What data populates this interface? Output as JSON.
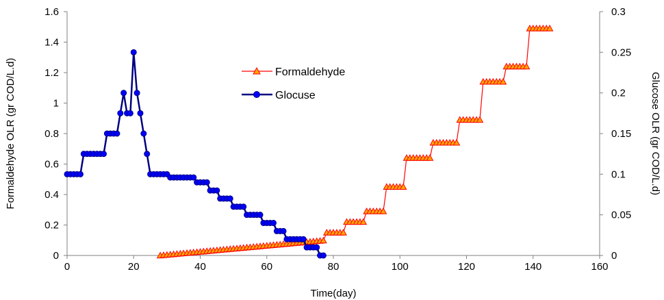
{
  "chart_data": {
    "type": "line",
    "title": "",
    "xlabel": "Time(day)",
    "ylabel_left": "Formaldehyde OLR (gr COD/L.d)",
    "ylabel_right": "Glucose OLR (gr COD/L.d)",
    "xlim": [
      0,
      160
    ],
    "ylim_left": [
      0,
      1.6
    ],
    "ylim_right": [
      0,
      0.3
    ],
    "x_ticks": [
      "0",
      "20",
      "40",
      "60",
      "80",
      "100",
      "120",
      "140",
      "160"
    ],
    "y_left_ticks": [
      "0",
      "0.2",
      "0.4",
      "0.6",
      "0.8",
      "1",
      "1.2",
      "1.4",
      "1.6"
    ],
    "y_right_ticks": [
      "0",
      "0.05",
      "0.1",
      "0.15",
      "0.2",
      "0.25",
      "0.3"
    ],
    "grid": false,
    "legend_position": "center",
    "series": [
      {
        "name": "Formaldehyde",
        "axis": "left",
        "color": "#ff0000",
        "marker_fill": "#ffa500",
        "marker": "triangle",
        "x": [
          28,
          29,
          30,
          31,
          32,
          33,
          34,
          35,
          36,
          37,
          38,
          39,
          40,
          41,
          42,
          43,
          44,
          45,
          46,
          47,
          48,
          49,
          50,
          51,
          52,
          53,
          54,
          55,
          56,
          57,
          58,
          59,
          60,
          61,
          62,
          63,
          64,
          65,
          66,
          67,
          68,
          69,
          70,
          71,
          72,
          73,
          74,
          75,
          76,
          77,
          78,
          79,
          80,
          81,
          82,
          83,
          84,
          85,
          86,
          87,
          88,
          89,
          90,
          91,
          92,
          93,
          94,
          95,
          96,
          97,
          98,
          99,
          100,
          101,
          102,
          103,
          104,
          105,
          106,
          107,
          108,
          109,
          110,
          111,
          112,
          113,
          114,
          115,
          116,
          117,
          118,
          119,
          120,
          121,
          122,
          123,
          124,
          125,
          126,
          127,
          128,
          129,
          130,
          131,
          132,
          133,
          134,
          135,
          136,
          137,
          138,
          139,
          140,
          141,
          142,
          143,
          144,
          145
        ],
        "y": [
          0.0,
          0.002,
          0.004,
          0.006,
          0.008,
          0.01,
          0.012,
          0.014,
          0.016,
          0.018,
          0.02,
          0.022,
          0.024,
          0.026,
          0.028,
          0.03,
          0.032,
          0.034,
          0.036,
          0.038,
          0.04,
          0.042,
          0.044,
          0.046,
          0.048,
          0.05,
          0.052,
          0.054,
          0.056,
          0.058,
          0.06,
          0.062,
          0.064,
          0.066,
          0.068,
          0.07,
          0.072,
          0.074,
          0.076,
          0.078,
          0.08,
          0.082,
          0.084,
          0.086,
          0.088,
          0.09,
          0.092,
          0.094,
          0.096,
          0.098,
          0.15,
          0.15,
          0.15,
          0.15,
          0.15,
          0.15,
          0.22,
          0.22,
          0.22,
          0.22,
          0.22,
          0.22,
          0.29,
          0.29,
          0.29,
          0.29,
          0.29,
          0.29,
          0.45,
          0.45,
          0.45,
          0.45,
          0.45,
          0.45,
          0.64,
          0.64,
          0.64,
          0.64,
          0.64,
          0.64,
          0.64,
          0.64,
          0.74,
          0.74,
          0.74,
          0.74,
          0.74,
          0.74,
          0.74,
          0.74,
          0.89,
          0.89,
          0.89,
          0.89,
          0.89,
          0.89,
          0.89,
          1.14,
          1.14,
          1.14,
          1.14,
          1.14,
          1.14,
          1.14,
          1.24,
          1.24,
          1.24,
          1.24,
          1.24,
          1.24,
          1.24,
          1.49,
          1.49,
          1.49,
          1.49,
          1.49,
          1.49,
          1.49
        ]
      },
      {
        "name": "Glocuse",
        "axis": "right",
        "color": "#000080",
        "marker_fill": "#0000ff",
        "marker": "circle",
        "x": [
          0,
          1,
          2,
          3,
          4,
          5,
          6,
          7,
          8,
          9,
          10,
          11,
          12,
          13,
          14,
          15,
          16,
          17,
          18,
          19,
          20,
          21,
          22,
          23,
          24,
          25,
          26,
          27,
          28,
          29,
          30,
          31,
          32,
          33,
          34,
          35,
          36,
          37,
          38,
          39,
          40,
          41,
          42,
          43,
          44,
          45,
          46,
          47,
          48,
          49,
          50,
          51,
          52,
          53,
          54,
          55,
          56,
          57,
          58,
          59,
          60,
          61,
          62,
          63,
          64,
          65,
          66,
          67,
          68,
          69,
          70,
          71,
          72,
          73,
          74,
          75,
          76,
          77
        ],
        "y": [
          0.1,
          0.1,
          0.1,
          0.1,
          0.1,
          0.125,
          0.125,
          0.125,
          0.125,
          0.125,
          0.125,
          0.125,
          0.15,
          0.15,
          0.15,
          0.15,
          0.175,
          0.2,
          0.175,
          0.175,
          0.25,
          0.2,
          0.175,
          0.15,
          0.125,
          0.1,
          0.1,
          0.1,
          0.1,
          0.1,
          0.1,
          0.096,
          0.096,
          0.096,
          0.096,
          0.096,
          0.096,
          0.096,
          0.096,
          0.09,
          0.09,
          0.09,
          0.09,
          0.08,
          0.08,
          0.08,
          0.07,
          0.07,
          0.07,
          0.07,
          0.06,
          0.06,
          0.06,
          0.06,
          0.05,
          0.05,
          0.05,
          0.05,
          0.05,
          0.04,
          0.04,
          0.04,
          0.04,
          0.03,
          0.03,
          0.03,
          0.02,
          0.02,
          0.02,
          0.02,
          0.02,
          0.02,
          0.01,
          0.01,
          0.01,
          0.01,
          0.0,
          0.0
        ]
      }
    ]
  }
}
